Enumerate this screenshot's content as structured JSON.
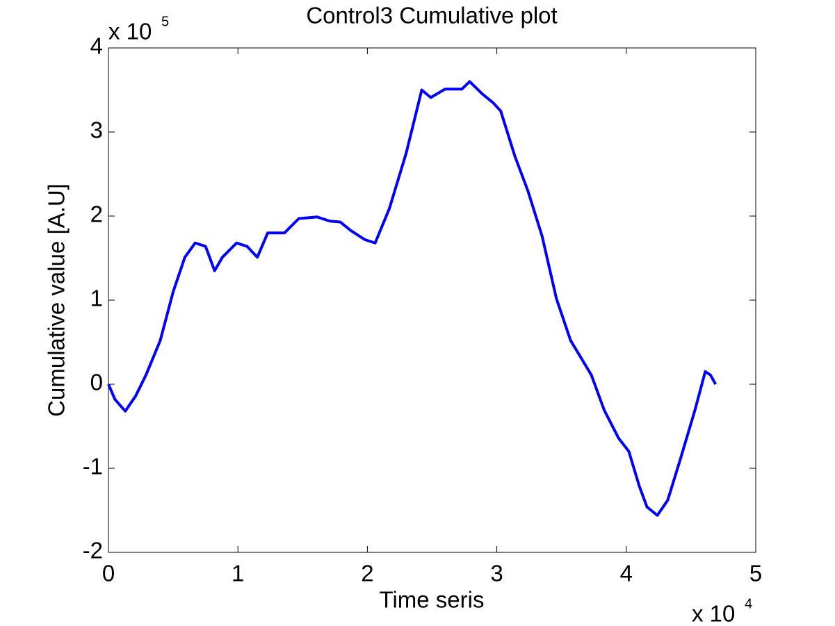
{
  "chart_data": {
    "type": "line",
    "title": "Control3 Cumulative plot",
    "x_label": "Time seris",
    "y_label": "Cumulative value [A.U]",
    "x_multiplier": {
      "base": "x 10",
      "exponent": "4"
    },
    "y_multiplier": {
      "base": "x 10",
      "exponent": "5"
    },
    "xlim": [
      0,
      5
    ],
    "xticks": [
      0,
      1,
      2,
      3,
      4,
      5
    ],
    "ylim": [
      -2,
      4
    ],
    "yticks": [
      -2,
      -1,
      0,
      1,
      2,
      3,
      4
    ],
    "grid": false,
    "series": [
      {
        "name": "Control3",
        "color": "#0000ff",
        "x": [
          0,
          0.05,
          0.13,
          0.21,
          0.29,
          0.4,
          0.5,
          0.59,
          0.67,
          0.75,
          0.82,
          0.88,
          0.99,
          1.07,
          1.15,
          1.23,
          1.36,
          1.47,
          1.61,
          1.71,
          1.79,
          1.87,
          1.98,
          2.06,
          2.17,
          2.3,
          2.42,
          2.49,
          2.6,
          2.73,
          2.79,
          2.89,
          2.97,
          3.03,
          3.14,
          3.24,
          3.35,
          3.46,
          3.57,
          3.73,
          3.83,
          3.94,
          4.02,
          4.1,
          4.16,
          4.24,
          4.32,
          4.42,
          4.53,
          4.61,
          4.65,
          4.69
        ],
        "values": [
          0,
          -0.18,
          -0.32,
          -0.14,
          0.11,
          0.52,
          1.1,
          1.51,
          1.68,
          1.64,
          1.35,
          1.51,
          1.68,
          1.64,
          1.51,
          1.8,
          1.8,
          1.97,
          1.99,
          1.94,
          1.93,
          1.83,
          1.72,
          1.68,
          2.09,
          2.75,
          3.5,
          3.41,
          3.51,
          3.51,
          3.6,
          3.45,
          3.35,
          3.25,
          2.71,
          2.3,
          1.76,
          1.02,
          0.52,
          0.11,
          -0.31,
          -0.64,
          -0.8,
          -1.21,
          -1.46,
          -1.56,
          -1.38,
          -0.88,
          -0.31,
          0.15,
          0.11,
          0
        ]
      }
    ]
  }
}
